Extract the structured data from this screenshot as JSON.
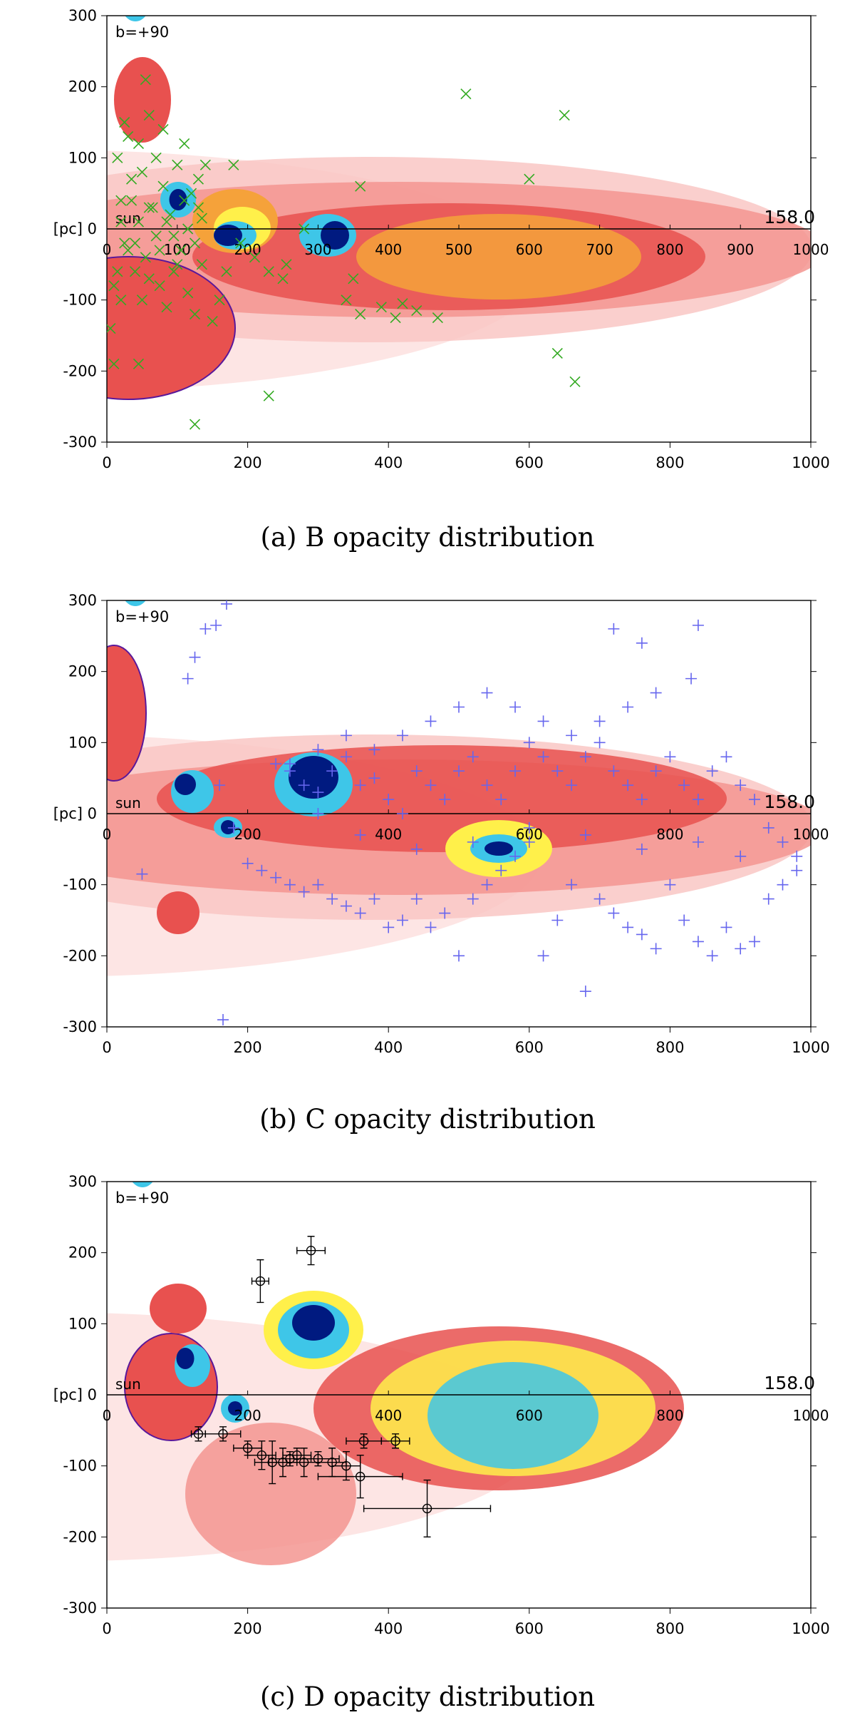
{
  "chart_data": [
    {
      "type": "heatmap",
      "id": "B",
      "caption": "(a) B opacity distribution",
      "latitude_label": "b=+90",
      "sun_label": "sun",
      "y_unit_label": "[pc] 0",
      "value_label": "158.0",
      "xlim": [
        0,
        1000
      ],
      "ylim": [
        -300,
        300
      ],
      "x_ticks": [
        "0",
        "200",
        "400",
        "600",
        "800",
        "1000"
      ],
      "y_ticks": [
        "300",
        "200",
        "100",
        "-100",
        "-200",
        "-300"
      ],
      "sun_axis_ticks": [
        "0",
        "100",
        "200",
        "300",
        "400",
        "500",
        "600",
        "700",
        "800",
        "900",
        "1000"
      ],
      "marker": "x",
      "marker_color": "#33aa22",
      "points": [
        [
          5,
          -140
        ],
        [
          10,
          -190
        ],
        [
          15,
          -60
        ],
        [
          20,
          -100
        ],
        [
          25,
          150
        ],
        [
          30,
          130
        ],
        [
          35,
          40
        ],
        [
          40,
          -20
        ],
        [
          45,
          120
        ],
        [
          50,
          80
        ],
        [
          55,
          -40
        ],
        [
          60,
          160
        ],
        [
          65,
          30
        ],
        [
          70,
          100
        ],
        [
          75,
          -80
        ],
        [
          80,
          60
        ],
        [
          85,
          -110
        ],
        [
          90,
          20
        ],
        [
          95,
          -60
        ],
        [
          100,
          90
        ],
        [
          105,
          -30
        ],
        [
          110,
          120
        ],
        [
          115,
          -90
        ],
        [
          120,
          50
        ],
        [
          125,
          -20
        ],
        [
          130,
          70
        ],
        [
          135,
          -50
        ],
        [
          140,
          90
        ],
        [
          20,
          40
        ],
        [
          30,
          -30
        ],
        [
          45,
          10
        ],
        [
          60,
          -70
        ],
        [
          80,
          140
        ],
        [
          95,
          -10
        ],
        [
          110,
          40
        ],
        [
          125,
          -120
        ],
        [
          135,
          15
        ],
        [
          150,
          -130
        ],
        [
          160,
          -100
        ],
        [
          170,
          -60
        ],
        [
          180,
          90
        ],
        [
          190,
          -20
        ],
        [
          210,
          -40
        ],
        [
          230,
          -60
        ],
        [
          250,
          -70
        ],
        [
          255,
          -50
        ],
        [
          280,
          0
        ],
        [
          340,
          -100
        ],
        [
          350,
          -70
        ],
        [
          360,
          -120
        ],
        [
          390,
          -110
        ],
        [
          410,
          -125
        ],
        [
          420,
          -105
        ],
        [
          440,
          -115
        ],
        [
          470,
          -125
        ],
        [
          510,
          190
        ],
        [
          600,
          70
        ],
        [
          650,
          160
        ],
        [
          640,
          -175
        ],
        [
          665,
          -215
        ],
        [
          360,
          60
        ],
        [
          230,
          -235
        ],
        [
          125,
          -275
        ],
        [
          45,
          -190
        ],
        [
          55,
          210
        ],
        [
          15,
          100
        ],
        [
          25,
          -20
        ],
        [
          35,
          70
        ],
        [
          50,
          -100
        ],
        [
          70,
          -10
        ],
        [
          85,
          10
        ],
        [
          100,
          -50
        ],
        [
          115,
          0
        ],
        [
          130,
          30
        ],
        [
          40,
          -60
        ],
        [
          60,
          30
        ],
        [
          75,
          -30
        ],
        [
          20,
          10
        ],
        [
          10,
          -80
        ]
      ]
    },
    {
      "type": "heatmap",
      "id": "C",
      "caption": "(b) C opacity distribution",
      "latitude_label": "b=+90",
      "sun_label": "sun",
      "y_unit_label": "[pc] 0",
      "value_label": "158.0",
      "xlim": [
        0,
        1000
      ],
      "ylim": [
        -300,
        300
      ],
      "x_ticks": [
        "0",
        "200",
        "400",
        "600",
        "800",
        "1000"
      ],
      "y_ticks": [
        "300",
        "200",
        "100",
        "-100",
        "-200",
        "-300"
      ],
      "sun_axis_ticks": [
        "0",
        "200",
        "400",
        "600",
        "800",
        "1000"
      ],
      "marker": "+",
      "marker_color": "#6666ee",
      "points": [
        [
          115,
          190
        ],
        [
          125,
          220
        ],
        [
          140,
          260
        ],
        [
          155,
          265
        ],
        [
          170,
          295
        ],
        [
          165,
          -290
        ],
        [
          50,
          -85
        ],
        [
          240,
          70
        ],
        [
          260,
          60
        ],
        [
          280,
          40
        ],
        [
          300,
          30
        ],
        [
          320,
          60
        ],
        [
          340,
          80
        ],
        [
          360,
          40
        ],
        [
          380,
          50
        ],
        [
          400,
          20
        ],
        [
          420,
          0
        ],
        [
          440,
          60
        ],
        [
          460,
          40
        ],
        [
          480,
          20
        ],
        [
          500,
          60
        ],
        [
          520,
          80
        ],
        [
          540,
          40
        ],
        [
          560,
          20
        ],
        [
          580,
          60
        ],
        [
          600,
          100
        ],
        [
          620,
          80
        ],
        [
          640,
          60
        ],
        [
          660,
          40
        ],
        [
          680,
          80
        ],
        [
          700,
          100
        ],
        [
          720,
          60
        ],
        [
          740,
          40
        ],
        [
          760,
          20
        ],
        [
          780,
          60
        ],
        [
          800,
          80
        ],
        [
          820,
          40
        ],
        [
          840,
          20
        ],
        [
          860,
          60
        ],
        [
          880,
          80
        ],
        [
          900,
          40
        ],
        [
          920,
          20
        ],
        [
          940,
          -20
        ],
        [
          960,
          -40
        ],
        [
          980,
          -60
        ],
        [
          200,
          -70
        ],
        [
          220,
          -80
        ],
        [
          240,
          -90
        ],
        [
          260,
          -100
        ],
        [
          280,
          -110
        ],
        [
          300,
          -100
        ],
        [
          320,
          -120
        ],
        [
          340,
          -130
        ],
        [
          360,
          -140
        ],
        [
          380,
          -120
        ],
        [
          400,
          -160
        ],
        [
          420,
          -150
        ],
        [
          440,
          -120
        ],
        [
          460,
          -160
        ],
        [
          480,
          -140
        ],
        [
          500,
          -200
        ],
        [
          520,
          -120
        ],
        [
          540,
          -100
        ],
        [
          560,
          -80
        ],
        [
          580,
          -60
        ],
        [
          600,
          -40
        ],
        [
          620,
          -200
        ],
        [
          640,
          -150
        ],
        [
          660,
          -100
        ],
        [
          680,
          -250
        ],
        [
          700,
          -120
        ],
        [
          720,
          -140
        ],
        [
          740,
          -160
        ],
        [
          760,
          -170
        ],
        [
          780,
          -190
        ],
        [
          800,
          -100
        ],
        [
          820,
          -150
        ],
        [
          840,
          -180
        ],
        [
          860,
          -200
        ],
        [
          880,
          -160
        ],
        [
          900,
          -190
        ],
        [
          920,
          -180
        ],
        [
          940,
          -120
        ],
        [
          960,
          -100
        ],
        [
          980,
          -80
        ],
        [
          720,
          260
        ],
        [
          760,
          240
        ],
        [
          840,
          265
        ],
        [
          830,
          190
        ],
        [
          780,
          170
        ],
        [
          740,
          150
        ],
        [
          700,
          130
        ],
        [
          660,
          110
        ],
        [
          620,
          130
        ],
        [
          580,
          150
        ],
        [
          540,
          170
        ],
        [
          500,
          150
        ],
        [
          460,
          130
        ],
        [
          420,
          110
        ],
        [
          380,
          90
        ],
        [
          340,
          110
        ],
        [
          300,
          90
        ],
        [
          260,
          70
        ],
        [
          160,
          40
        ],
        [
          180,
          -20
        ],
        [
          300,
          0
        ],
        [
          360,
          -30
        ],
        [
          440,
          -50
        ],
        [
          520,
          -40
        ],
        [
          600,
          -20
        ],
        [
          680,
          -30
        ],
        [
          760,
          -50
        ],
        [
          840,
          -40
        ],
        [
          900,
          -60
        ]
      ]
    },
    {
      "type": "heatmap",
      "id": "D",
      "caption": "(c) D opacity distribution",
      "latitude_label": "b=+90",
      "sun_label": "sun",
      "y_unit_label": "[pc] 0",
      "value_label": "158.0",
      "xlim": [
        0,
        1000
      ],
      "ylim": [
        -300,
        300
      ],
      "x_ticks": [
        "0",
        "200",
        "400",
        "600",
        "800",
        "1000"
      ],
      "y_ticks": [
        "300",
        "200",
        "100",
        "-100",
        "-200",
        "-300"
      ],
      "sun_axis_ticks": [
        "0",
        "200",
        "400",
        "600",
        "800",
        "1000"
      ],
      "marker": "errorbar",
      "marker_color": "#000000",
      "points": [
        [
          290,
          203,
          20,
          20
        ],
        [
          218,
          160,
          12,
          30
        ],
        [
          165,
          -55,
          25,
          10
        ],
        [
          130,
          -55,
          10,
          10
        ],
        [
          200,
          -75,
          20,
          10
        ],
        [
          220,
          -85,
          20,
          20
        ],
        [
          235,
          -95,
          25,
          30
        ],
        [
          250,
          -95,
          20,
          20
        ],
        [
          260,
          -90,
          30,
          10
        ],
        [
          270,
          -85,
          20,
          10
        ],
        [
          280,
          -95,
          20,
          20
        ],
        [
          300,
          -90,
          30,
          10
        ],
        [
          320,
          -95,
          20,
          20
        ],
        [
          340,
          -100,
          20,
          20
        ],
        [
          365,
          -65,
          25,
          10
        ],
        [
          410,
          -65,
          20,
          10
        ],
        [
          360,
          -115,
          60,
          30
        ],
        [
          455,
          -160,
          90,
          40
        ]
      ]
    }
  ]
}
